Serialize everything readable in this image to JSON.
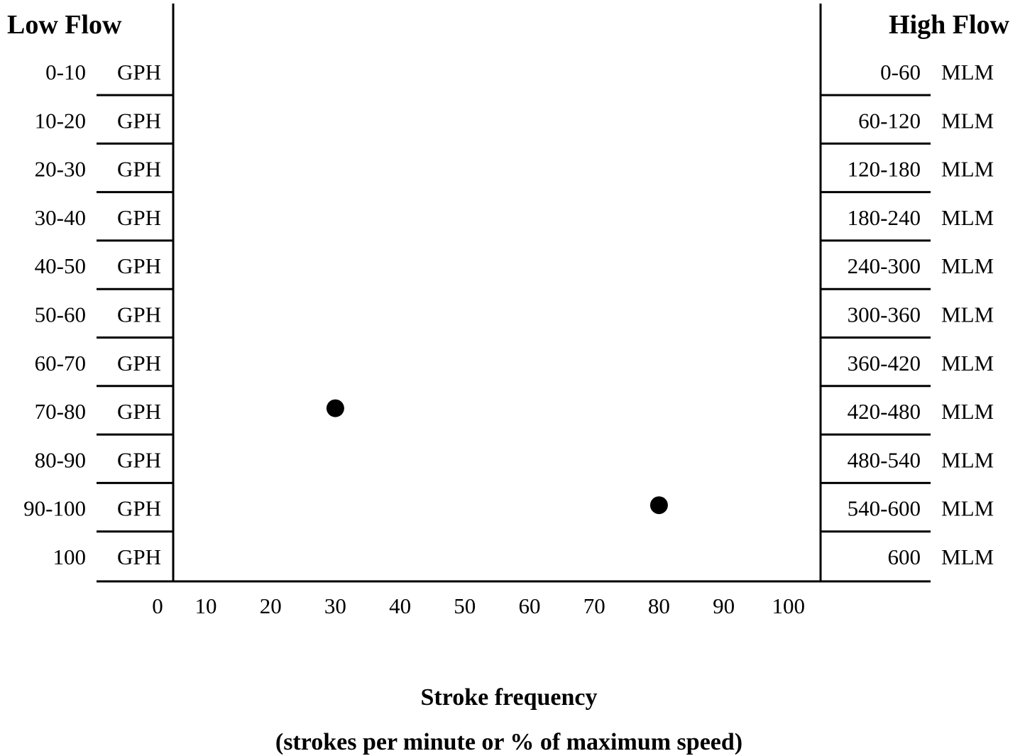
{
  "chart_data": {
    "type": "scatter",
    "left_axis": {
      "title": "Low Flow",
      "unit": "GPH",
      "categories": [
        "0-10",
        "10-20",
        "20-30",
        "30-40",
        "40-50",
        "50-60",
        "60-70",
        "70-80",
        "80-90",
        "90-100",
        "100"
      ]
    },
    "right_axis": {
      "title": "High Flow",
      "unit": "MLM",
      "categories": [
        "0-60",
        "60-120",
        "120-180",
        "180-240",
        "240-300",
        "300-360",
        "360-420",
        "420-480",
        "480-540",
        "540-600",
        "600"
      ]
    },
    "x_axis": {
      "ticks": [
        0,
        10,
        20,
        30,
        40,
        50,
        60,
        70,
        80,
        90,
        100
      ],
      "range": [
        0,
        100
      ],
      "title": "Stroke frequency",
      "subtitle": "(strokes per minute or % of maximum speed)"
    },
    "points": [
      {
        "x": 30,
        "y": "70-80",
        "y_right": "420-480"
      },
      {
        "x": 80,
        "y": "90-100",
        "y_right": "540-600"
      }
    ],
    "colors": {
      "ink": "#000000",
      "background": "#ffffff"
    }
  }
}
